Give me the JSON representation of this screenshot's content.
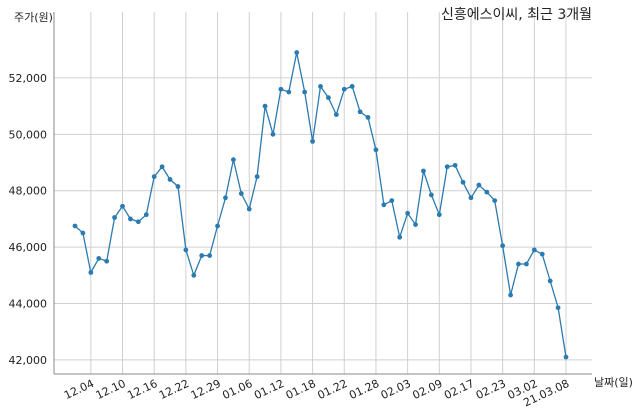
{
  "chart_data": {
    "type": "line",
    "title": "신흥에스이씨, 최근 3개월",
    "xlabel": "날짜(일)",
    "ylabel": "주가(원)",
    "ylim": [
      41500,
      53700
    ],
    "grid": true,
    "yticks": [
      42000,
      44000,
      46000,
      48000,
      50000,
      52000
    ],
    "ytick_labels": [
      "42,000",
      "44,000",
      "46,000",
      "48,000",
      "50,000",
      "52,000"
    ],
    "xtick_labels": [
      "12.04",
      "12.10",
      "12.16",
      "12.22",
      "12.29",
      "01.06",
      "01.12",
      "01.18",
      "01.22",
      "01.28",
      "02.03",
      "02.09",
      "02.17",
      "02.23",
      "03.02",
      "21.03.08"
    ],
    "xtick_indices": [
      2,
      6,
      10,
      14,
      18,
      22,
      26,
      30,
      34,
      38,
      42,
      46,
      50,
      54,
      58,
      62
    ],
    "series": [
      {
        "color": "#2b7bb0",
        "values": [
          46750,
          46500,
          45100,
          45600,
          45500,
          47050,
          47450,
          47000,
          46900,
          47150,
          48500,
          48850,
          48400,
          48150,
          45900,
          45000,
          45700,
          45700,
          46750,
          47750,
          49100,
          47900,
          47350,
          48500,
          51000,
          50000,
          51600,
          51500,
          52900,
          51500,
          49750,
          51700,
          51300,
          50700,
          51600,
          51700,
          50800,
          50600,
          49450,
          47500,
          47650,
          46350,
          47200,
          46800,
          48700,
          47850,
          47150,
          48850,
          48900,
          48300,
          47750,
          48200,
          47950,
          47650,
          46050,
          44300,
          45400,
          45400,
          45900,
          45750,
          44800,
          43850,
          42100
        ]
      }
    ]
  }
}
